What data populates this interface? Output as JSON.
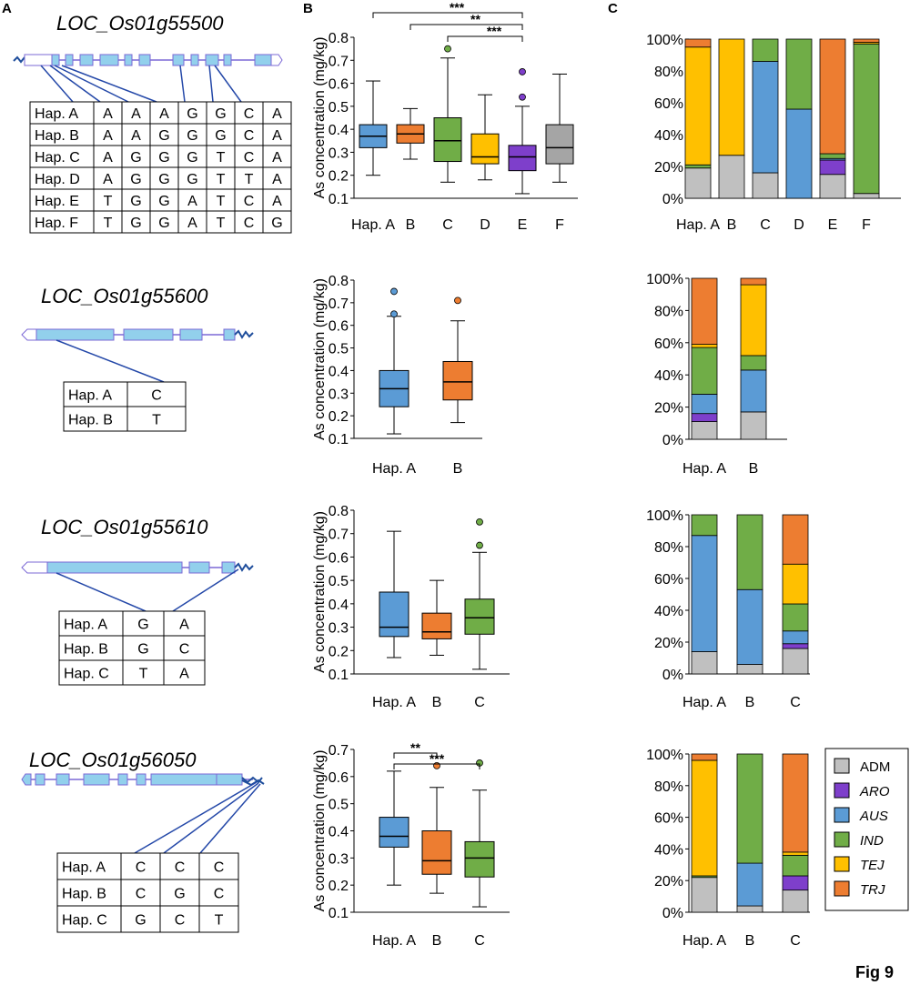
{
  "panels": {
    "a": "A",
    "b": "B",
    "c": "C"
  },
  "figure_label": "Fig 9",
  "y_axis_label": "As concentration (mg/kg)",
  "legend": [
    {
      "key": "ADM",
      "label": "ADM",
      "italic": false,
      "color": "#c0c0c0"
    },
    {
      "key": "ARO",
      "label": "ARO",
      "italic": true,
      "color": "#7e3fcb"
    },
    {
      "key": "AUS",
      "label": "AUS",
      "italic": true,
      "color": "#5b9bd5"
    },
    {
      "key": "IND",
      "label": "IND",
      "italic": true,
      "color": "#70ad47"
    },
    {
      "key": "TEJ",
      "label": "TEJ",
      "italic": true,
      "color": "#ffc000"
    },
    {
      "key": "TRJ",
      "label": "TRJ",
      "italic": true,
      "color": "#ed7d31"
    }
  ],
  "genes": [
    {
      "name": "LOC_Os01g55500",
      "haplotype_table": [
        [
          "Hap. A",
          "A",
          "A",
          "A",
          "G",
          "G",
          "C",
          "A"
        ],
        [
          "Hap. B",
          "A",
          "A",
          "G",
          "G",
          "G",
          "C",
          "A"
        ],
        [
          "Hap. C",
          "A",
          "G",
          "G",
          "G",
          "T",
          "C",
          "A"
        ],
        [
          "Hap. D",
          "A",
          "G",
          "G",
          "G",
          "T",
          "T",
          "A"
        ],
        [
          "Hap. E",
          "T",
          "G",
          "G",
          "A",
          "T",
          "C",
          "A"
        ],
        [
          "Hap. F",
          "T",
          "G",
          "G",
          "A",
          "T",
          "C",
          "G"
        ]
      ]
    },
    {
      "name": "LOC_Os01g55600",
      "haplotype_table": [
        [
          "Hap. A",
          "C"
        ],
        [
          "Hap. B",
          "T"
        ]
      ]
    },
    {
      "name": "LOC_Os01g55610",
      "haplotype_table": [
        [
          "Hap. A",
          "G",
          "A"
        ],
        [
          "Hap. B",
          "G",
          "C"
        ],
        [
          "Hap. C",
          "T",
          "A"
        ]
      ]
    },
    {
      "name": "LOC_Os01g56050",
      "haplotype_table": [
        [
          "Hap. A",
          "C",
          "C",
          "C"
        ],
        [
          "Hap. B",
          "C",
          "G",
          "C"
        ],
        [
          "Hap. C",
          "G",
          "C",
          "T"
        ]
      ]
    }
  ],
  "chart_data": [
    {
      "type": "box",
      "gene": "LOC_Os01g55500",
      "ylabel": "As concentration (mg/kg)",
      "ylim": [
        0.1,
        0.8
      ],
      "yticks": [
        0.1,
        0.2,
        0.3,
        0.4,
        0.5,
        0.6,
        0.7,
        0.8
      ],
      "categories": [
        "Hap. A",
        "B",
        "C",
        "D",
        "E",
        "F"
      ],
      "colors": [
        "#5b9bd5",
        "#ed7d31",
        "#70ad47",
        "#ffc000",
        "#7e3fcb",
        "#a5a5a5"
      ],
      "boxes": [
        {
          "min": 0.2,
          "q1": 0.32,
          "median": 0.37,
          "q3": 0.42,
          "max": 0.61,
          "outliers": []
        },
        {
          "min": 0.27,
          "q1": 0.34,
          "median": 0.38,
          "q3": 0.42,
          "max": 0.49,
          "outliers": []
        },
        {
          "min": 0.17,
          "q1": 0.26,
          "median": 0.35,
          "q3": 0.45,
          "max": 0.71,
          "outliers": [
            0.75
          ]
        },
        {
          "min": 0.18,
          "q1": 0.25,
          "median": 0.28,
          "q3": 0.38,
          "max": 0.55,
          "outliers": []
        },
        {
          "min": 0.12,
          "q1": 0.22,
          "median": 0.28,
          "q3": 0.33,
          "max": 0.5,
          "outliers": [
            0.54,
            0.65
          ]
        },
        {
          "min": 0.17,
          "q1": 0.25,
          "median": 0.32,
          "q3": 0.42,
          "max": 0.64,
          "outliers": []
        }
      ],
      "significance": [
        {
          "from": 0,
          "to": 4,
          "label": "***"
        },
        {
          "from": 1,
          "to": 4,
          "label": "**"
        },
        {
          "from": 2,
          "to": 4,
          "label": "***"
        }
      ]
    },
    {
      "type": "box",
      "gene": "LOC_Os01g55600",
      "ylabel": "As concentration (mg/kg)",
      "ylim": [
        0.1,
        0.8
      ],
      "yticks": [
        0.1,
        0.2,
        0.3,
        0.4,
        0.5,
        0.6,
        0.7,
        0.8
      ],
      "categories": [
        "Hap. A",
        "B"
      ],
      "colors": [
        "#5b9bd5",
        "#ed7d31"
      ],
      "boxes": [
        {
          "min": 0.12,
          "q1": 0.24,
          "median": 0.32,
          "q3": 0.4,
          "max": 0.64,
          "outliers": [
            0.65,
            0.75
          ]
        },
        {
          "min": 0.17,
          "q1": 0.27,
          "median": 0.35,
          "q3": 0.44,
          "max": 0.62,
          "outliers": [
            0.71
          ]
        }
      ],
      "significance": []
    },
    {
      "type": "box",
      "gene": "LOC_Os01g55610",
      "ylabel": "As concentration (mg/kg)",
      "ylim": [
        0.1,
        0.8
      ],
      "yticks": [
        0.1,
        0.2,
        0.3,
        0.4,
        0.5,
        0.6,
        0.7,
        0.8
      ],
      "categories": [
        "Hap. A",
        "B",
        "C"
      ],
      "colors": [
        "#5b9bd5",
        "#ed7d31",
        "#70ad47"
      ],
      "boxes": [
        {
          "min": 0.17,
          "q1": 0.26,
          "median": 0.3,
          "q3": 0.45,
          "max": 0.71,
          "outliers": []
        },
        {
          "min": 0.18,
          "q1": 0.25,
          "median": 0.28,
          "q3": 0.36,
          "max": 0.5,
          "outliers": []
        },
        {
          "min": 0.12,
          "q1": 0.27,
          "median": 0.34,
          "q3": 0.42,
          "max": 0.62,
          "outliers": [
            0.65,
            0.75
          ]
        }
      ],
      "significance": []
    },
    {
      "type": "box",
      "gene": "LOC_Os01g56050",
      "ylabel": "As concentration (mg/kg)",
      "ylim": [
        0.1,
        0.7
      ],
      "yticks": [
        0.1,
        0.2,
        0.3,
        0.4,
        0.5,
        0.6,
        0.7
      ],
      "categories": [
        "Hap. A",
        "B",
        "C"
      ],
      "colors": [
        "#5b9bd5",
        "#ed7d31",
        "#70ad47"
      ],
      "boxes": [
        {
          "min": 0.2,
          "q1": 0.34,
          "median": 0.38,
          "q3": 0.45,
          "max": 0.62,
          "outliers": []
        },
        {
          "min": 0.17,
          "q1": 0.24,
          "median": 0.29,
          "q3": 0.4,
          "max": 0.56,
          "outliers": [
            0.64
          ]
        },
        {
          "min": 0.12,
          "q1": 0.23,
          "median": 0.3,
          "q3": 0.36,
          "max": 0.55,
          "outliers": [
            0.65
          ]
        }
      ],
      "significance": [
        {
          "from": 0,
          "to": 1,
          "label": "**"
        },
        {
          "from": 0,
          "to": 2,
          "label": "***"
        }
      ]
    },
    {
      "type": "stacked_bar",
      "gene": "LOC_Os01g55500",
      "ylim": [
        0,
        100
      ],
      "yticks": [
        "0%",
        "20%",
        "40%",
        "60%",
        "80%",
        "100%"
      ],
      "categories": [
        "Hap. A",
        "B",
        "C",
        "D",
        "E",
        "F"
      ],
      "series_order": [
        "ADM",
        "ARO",
        "AUS",
        "IND",
        "TEJ",
        "TRJ"
      ],
      "percent": [
        {
          "ADM": 19,
          "ARO": 0,
          "AUS": 0,
          "IND": 2,
          "TEJ": 74,
          "TRJ": 5
        },
        {
          "ADM": 27,
          "ARO": 0,
          "AUS": 0,
          "IND": 0,
          "TEJ": 73,
          "TRJ": 0
        },
        {
          "ADM": 16,
          "ARO": 0,
          "AUS": 70,
          "IND": 14,
          "TEJ": 0,
          "TRJ": 0
        },
        {
          "ADM": 0,
          "ARO": 0,
          "AUS": 56,
          "IND": 44,
          "TEJ": 0,
          "TRJ": 0
        },
        {
          "ADM": 15,
          "ARO": 9,
          "AUS": 1,
          "IND": 3,
          "TEJ": 0,
          "TRJ": 72
        },
        {
          "ADM": 3,
          "ARO": 0,
          "AUS": 0,
          "IND": 94,
          "TEJ": 1,
          "TRJ": 2
        }
      ]
    },
    {
      "type": "stacked_bar",
      "gene": "LOC_Os01g55600",
      "ylim": [
        0,
        100
      ],
      "yticks": [
        "0%",
        "20%",
        "40%",
        "60%",
        "80%",
        "100%"
      ],
      "categories": [
        "Hap. A",
        "B"
      ],
      "series_order": [
        "ADM",
        "ARO",
        "AUS",
        "IND",
        "TEJ",
        "TRJ"
      ],
      "percent": [
        {
          "ADM": 11,
          "ARO": 5,
          "AUS": 12,
          "IND": 29,
          "TEJ": 2,
          "TRJ": 41
        },
        {
          "ADM": 17,
          "ARO": 0,
          "AUS": 26,
          "IND": 9,
          "TEJ": 44,
          "TRJ": 4
        }
      ]
    },
    {
      "type": "stacked_bar",
      "gene": "LOC_Os01g55610",
      "ylim": [
        0,
        100
      ],
      "yticks": [
        "0%",
        "20%",
        "40%",
        "60%",
        "80%",
        "100%"
      ],
      "categories": [
        "Hap. A",
        "B",
        "C"
      ],
      "series_order": [
        "ADM",
        "ARO",
        "AUS",
        "IND",
        "TEJ",
        "TRJ"
      ],
      "percent": [
        {
          "ADM": 14,
          "ARO": 0,
          "AUS": 73,
          "IND": 13,
          "TEJ": 0,
          "TRJ": 0
        },
        {
          "ADM": 6,
          "ARO": 0,
          "AUS": 47,
          "IND": 47,
          "TEJ": 0,
          "TRJ": 0
        },
        {
          "ADM": 16,
          "ARO": 3,
          "AUS": 8,
          "IND": 17,
          "TEJ": 25,
          "TRJ": 31
        }
      ]
    },
    {
      "type": "stacked_bar",
      "gene": "LOC_Os01g56050",
      "ylim": [
        0,
        100
      ],
      "yticks": [
        "0%",
        "20%",
        "40%",
        "60%",
        "80%",
        "100%"
      ],
      "categories": [
        "Hap. A",
        "B",
        "C"
      ],
      "series_order": [
        "ADM",
        "ARO",
        "AUS",
        "IND",
        "TEJ",
        "TRJ"
      ],
      "percent": [
        {
          "ADM": 22,
          "ARO": 0,
          "AUS": 0,
          "IND": 1,
          "TEJ": 73,
          "TRJ": 4
        },
        {
          "ADM": 4,
          "ARO": 0,
          "AUS": 27,
          "IND": 69,
          "TEJ": 0,
          "TRJ": 0
        },
        {
          "ADM": 14,
          "ARO": 9,
          "AUS": 0,
          "IND": 13,
          "TEJ": 2,
          "TRJ": 62
        }
      ]
    }
  ]
}
